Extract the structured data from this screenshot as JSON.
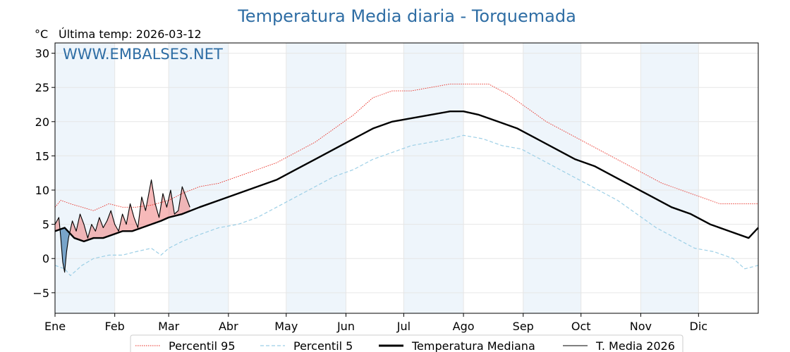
{
  "chart_data": {
    "type": "line",
    "title": "Temperatura Media diaria - Torquemada",
    "unit": "°C",
    "last_temp_label": "Última temp: 2026-03-12",
    "watermark": "WWW.EMBALSES.NET",
    "ylim": [
      -8,
      31.5
    ],
    "yticks": [
      -5,
      0,
      5,
      10,
      15,
      20,
      25,
      30
    ],
    "xlim": [
      0,
      365
    ],
    "months": [
      "Ene",
      "Feb",
      "Mar",
      "Abr",
      "May",
      "Jun",
      "Jul",
      "Ago",
      "Sep",
      "Oct",
      "Nov",
      "Dic"
    ],
    "month_starts": [
      0,
      31,
      59,
      90,
      120,
      151,
      181,
      212,
      243,
      273,
      304,
      334
    ],
    "shaded_months": [
      0,
      2,
      4,
      6,
      8,
      10
    ],
    "grid": true,
    "legend_position": "bottom",
    "colors": {
      "p95": "#e8281e",
      "p5": "#9ccfe6",
      "median": "#000000",
      "current": "#000000",
      "above_fill": "#f08080",
      "below_fill": "#4682b4",
      "title": "#2e6da4",
      "shade": "#eef5fb"
    },
    "series": [
      {
        "name": "Percentil 95",
        "key": "p95",
        "style": "dotted",
        "points": [
          [
            0,
            7.5
          ],
          [
            3,
            8.5
          ],
          [
            8,
            8.0
          ],
          [
            14,
            7.5
          ],
          [
            20,
            7.0
          ],
          [
            28,
            8.0
          ],
          [
            35,
            7.5
          ],
          [
            42,
            7.5
          ],
          [
            50,
            7.8
          ],
          [
            59,
            8.5
          ],
          [
            66,
            9.5
          ],
          [
            75,
            10.5
          ],
          [
            85,
            11.0
          ],
          [
            95,
            12.0
          ],
          [
            105,
            13.0
          ],
          [
            115,
            14.0
          ],
          [
            125,
            15.5
          ],
          [
            135,
            17.0
          ],
          [
            145,
            19.0
          ],
          [
            155,
            21.0
          ],
          [
            165,
            23.5
          ],
          [
            175,
            24.5
          ],
          [
            185,
            24.5
          ],
          [
            195,
            25.0
          ],
          [
            205,
            25.5
          ],
          [
            215,
            25.5
          ],
          [
            225,
            25.5
          ],
          [
            235,
            24.0
          ],
          [
            245,
            22.0
          ],
          [
            255,
            20.0
          ],
          [
            265,
            18.5
          ],
          [
            275,
            17.0
          ],
          [
            285,
            15.5
          ],
          [
            295,
            14.0
          ],
          [
            305,
            12.5
          ],
          [
            315,
            11.0
          ],
          [
            325,
            10.0
          ],
          [
            335,
            9.0
          ],
          [
            345,
            8.0
          ],
          [
            355,
            8.0
          ],
          [
            365,
            8.0
          ]
        ]
      },
      {
        "name": "Percentil 5",
        "key": "p5",
        "style": "dashed",
        "points": [
          [
            0,
            -1.0
          ],
          [
            5,
            -1.5
          ],
          [
            8,
            -2.5
          ],
          [
            14,
            -1.0
          ],
          [
            20,
            0.0
          ],
          [
            28,
            0.5
          ],
          [
            35,
            0.5
          ],
          [
            42,
            1.0
          ],
          [
            50,
            1.5
          ],
          [
            55,
            0.5
          ],
          [
            59,
            1.5
          ],
          [
            66,
            2.5
          ],
          [
            75,
            3.5
          ],
          [
            85,
            4.5
          ],
          [
            95,
            5.0
          ],
          [
            105,
            6.0
          ],
          [
            115,
            7.5
          ],
          [
            125,
            9.0
          ],
          [
            135,
            10.5
          ],
          [
            145,
            12.0
          ],
          [
            155,
            13.0
          ],
          [
            165,
            14.5
          ],
          [
            175,
            15.5
          ],
          [
            185,
            16.5
          ],
          [
            195,
            17.0
          ],
          [
            205,
            17.5
          ],
          [
            212,
            18.0
          ],
          [
            222,
            17.5
          ],
          [
            232,
            16.5
          ],
          [
            242,
            16.0
          ],
          [
            252,
            14.5
          ],
          [
            262,
            13.0
          ],
          [
            272,
            11.5
          ],
          [
            282,
            10.0
          ],
          [
            292,
            8.5
          ],
          [
            302,
            6.5
          ],
          [
            312,
            4.5
          ],
          [
            322,
            3.0
          ],
          [
            332,
            1.5
          ],
          [
            342,
            1.0
          ],
          [
            352,
            0.0
          ],
          [
            358,
            -1.5
          ],
          [
            365,
            -1.0
          ]
        ]
      },
      {
        "name": "Temperatura Mediana",
        "key": "median",
        "style": "thick",
        "points": [
          [
            0,
            4.0
          ],
          [
            5,
            4.5
          ],
          [
            10,
            3.0
          ],
          [
            15,
            2.5
          ],
          [
            20,
            3.0
          ],
          [
            25,
            3.0
          ],
          [
            30,
            3.5
          ],
          [
            35,
            4.0
          ],
          [
            40,
            4.0
          ],
          [
            45,
            4.5
          ],
          [
            50,
            5.0
          ],
          [
            55,
            5.5
          ],
          [
            59,
            6.0
          ],
          [
            66,
            6.5
          ],
          [
            75,
            7.5
          ],
          [
            85,
            8.5
          ],
          [
            95,
            9.5
          ],
          [
            105,
            10.5
          ],
          [
            115,
            11.5
          ],
          [
            125,
            13.0
          ],
          [
            135,
            14.5
          ],
          [
            145,
            16.0
          ],
          [
            155,
            17.5
          ],
          [
            165,
            19.0
          ],
          [
            175,
            20.0
          ],
          [
            185,
            20.5
          ],
          [
            195,
            21.0
          ],
          [
            205,
            21.5
          ],
          [
            212,
            21.5
          ],
          [
            220,
            21.0
          ],
          [
            230,
            20.0
          ],
          [
            240,
            19.0
          ],
          [
            250,
            17.5
          ],
          [
            260,
            16.0
          ],
          [
            270,
            14.5
          ],
          [
            280,
            13.5
          ],
          [
            290,
            12.0
          ],
          [
            300,
            10.5
          ],
          [
            310,
            9.0
          ],
          [
            320,
            7.5
          ],
          [
            330,
            6.5
          ],
          [
            340,
            5.0
          ],
          [
            350,
            4.0
          ],
          [
            360,
            3.0
          ],
          [
            365,
            4.5
          ]
        ]
      },
      {
        "name": "T. Media 2026",
        "key": "current",
        "style": "thin",
        "points": [
          [
            0,
            5.0
          ],
          [
            2,
            6.0
          ],
          [
            3,
            3.0
          ],
          [
            4,
            -0.5
          ],
          [
            5,
            -2.0
          ],
          [
            6,
            1.0
          ],
          [
            7,
            3.0
          ],
          [
            9,
            5.5
          ],
          [
            11,
            4.0
          ],
          [
            13,
            6.5
          ],
          [
            15,
            5.0
          ],
          [
            17,
            3.0
          ],
          [
            19,
            5.0
          ],
          [
            21,
            4.0
          ],
          [
            23,
            6.0
          ],
          [
            25,
            4.5
          ],
          [
            27,
            5.5
          ],
          [
            29,
            7.0
          ],
          [
            31,
            5.0
          ],
          [
            33,
            4.0
          ],
          [
            35,
            6.5
          ],
          [
            37,
            5.0
          ],
          [
            39,
            8.0
          ],
          [
            41,
            6.0
          ],
          [
            43,
            4.5
          ],
          [
            45,
            9.0
          ],
          [
            47,
            7.0
          ],
          [
            50,
            11.5
          ],
          [
            52,
            8.0
          ],
          [
            54,
            6.0
          ],
          [
            56,
            9.5
          ],
          [
            58,
            7.5
          ],
          [
            60,
            10.0
          ],
          [
            62,
            6.5
          ],
          [
            64,
            7.0
          ],
          [
            66,
            10.5
          ],
          [
            68,
            9.0
          ],
          [
            70,
            7.5
          ]
        ]
      }
    ]
  }
}
